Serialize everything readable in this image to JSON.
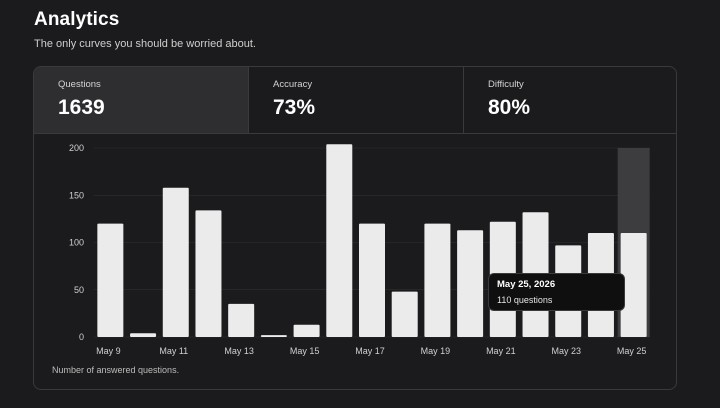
{
  "header": {
    "title": "Analytics",
    "subtitle": "The only curves you should be worried about."
  },
  "stats": [
    {
      "label": "Questions",
      "value": "1639"
    },
    {
      "label": "Accuracy",
      "value": "73%"
    },
    {
      "label": "Difficulty",
      "value": "80%"
    }
  ],
  "caption": "Number of answered questions.",
  "tooltip": {
    "date": "May 25, 2026",
    "value": "110 questions"
  },
  "colors": {
    "background": "#1b1a1c",
    "bar": "#ebebeb",
    "highlight": "#3d3c3f",
    "grid": "#333236"
  },
  "chart_data": {
    "type": "bar",
    "categories": [
      "May 9",
      "May 10",
      "May 11",
      "May 12",
      "May 13",
      "May 14",
      "May 15",
      "May 16",
      "May 17",
      "May 18",
      "May 19",
      "May 20",
      "May 21",
      "May 22",
      "May 23",
      "May 24",
      "May 25"
    ],
    "x_tick_labels": [
      "May 9",
      "May 11",
      "May 13",
      "May 15",
      "May 17",
      "May 19",
      "May 21",
      "May 23",
      "May 25"
    ],
    "values": [
      120,
      4,
      158,
      134,
      35,
      2,
      13,
      204,
      120,
      48,
      120,
      113,
      122,
      132,
      97,
      110,
      110
    ],
    "ylim": [
      0,
      200
    ],
    "yticks": [
      0,
      50,
      100,
      150,
      200
    ],
    "highlighted_category": "May 25",
    "grid": true
  }
}
